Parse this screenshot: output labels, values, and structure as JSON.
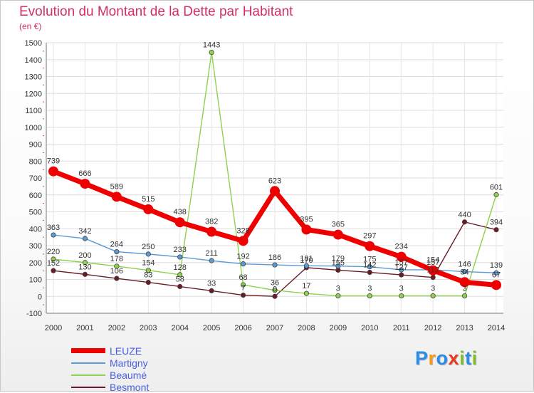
{
  "title": "Evolution du Montant de la Dette par Habitant",
  "subtitle": "(en €)",
  "logo": {
    "text": "Proxiti",
    "colors": [
      "#2b8be6",
      "#f29a1a",
      "#2b8be6",
      "#e8391f",
      "#7fbf2a",
      "#2b8be6",
      "#7fbf2a"
    ]
  },
  "chart_data": {
    "type": "line",
    "x": [
      2000,
      2001,
      2002,
      2003,
      2004,
      2005,
      2006,
      2007,
      2008,
      2009,
      2010,
      2011,
      2012,
      2013,
      2014
    ],
    "ylim": [
      -100,
      1500
    ],
    "yticks": [
      -100,
      0,
      100,
      200,
      300,
      400,
      500,
      600,
      700,
      800,
      900,
      1000,
      1100,
      1200,
      1300,
      1400,
      1500
    ],
    "grid": true,
    "legend_position": "bottom-left",
    "series": [
      {
        "name": "Besmont",
        "color": "#6b1b26",
        "values": [
          152,
          130,
          106,
          83,
          58,
          33,
          7,
          0,
          170,
          155,
          142,
          127,
          112,
          440,
          394
        ],
        "labels": [
          "152",
          "130",
          "106",
          "83",
          "58",
          "33",
          "7",
          "0",
          "170",
          "155",
          "142",
          "127",
          "112",
          "440",
          "394"
        ]
      },
      {
        "name": "Beaumé",
        "color": "#8fd14f",
        "values": [
          220,
          200,
          178,
          154,
          128,
          1443,
          68,
          36,
          17,
          3,
          3,
          3,
          3,
          3,
          601
        ],
        "labels": [
          "220",
          "200",
          "178",
          "154",
          "128",
          "1443",
          "68",
          "36",
          "17",
          "3",
          "3",
          "3",
          "3",
          "3",
          "601"
        ]
      },
      {
        "name": "Martigny",
        "color": "#5b9bd5",
        "values": [
          363,
          342,
          264,
          250,
          233,
          211,
          192,
          186,
          181,
          179,
          175,
          157,
          157,
          146,
          139
        ],
        "labels": [
          "363",
          "342",
          "264",
          "250",
          "233",
          "211",
          "192",
          "186",
          "181",
          "179",
          "175",
          "157",
          "157",
          "146",
          "139"
        ]
      },
      {
        "name": "LEUZE",
        "color": "#ee0000",
        "values": [
          739,
          666,
          589,
          515,
          438,
          382,
          328,
          623,
          395,
          365,
          297,
          234,
          154,
          84,
          67
        ],
        "labels": [
          "739",
          "666",
          "589",
          "515",
          "438",
          "382",
          "328",
          "623",
          "395",
          "365",
          "297",
          "234",
          "154",
          "84",
          "67"
        ]
      }
    ],
    "legend_order": [
      "LEUZE",
      "Martigny",
      "Beaumé",
      "Besmont"
    ]
  }
}
